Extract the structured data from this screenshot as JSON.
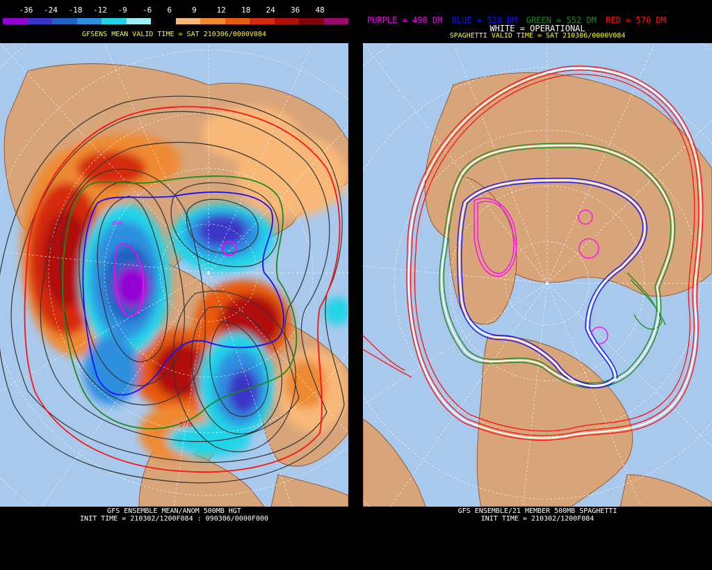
{
  "left": {
    "colorbar": {
      "labels": [
        "-36",
        "-24",
        "-18",
        "-12",
        "-9",
        "-6",
        "6",
        "9",
        "12",
        "18",
        "24",
        "36",
        "48"
      ],
      "colors": [
        "#9400d3",
        "#3a35c8",
        "#2060c0",
        "#2f8fdf",
        "#21d4e8",
        "#a0ecf5",
        "#000000",
        "#f8b878",
        "#ef8a30",
        "#e85a10",
        "#d42a10",
        "#b0100a",
        "#800010",
        "#9a0a6a"
      ]
    },
    "valid_time": "GFSENS MEAN VALID TIME = SAT 210306/0000V084",
    "caption_line1": "GFS ENSEMBLE MEAN/ANOM 500MB HGT",
    "caption_line2": "INIT TIME = 210302/1200F084 : 090306/0000F000",
    "contour_label_576": "576",
    "contour_label_498": "498"
  },
  "right": {
    "legend": {
      "purple": "PURPLE = 498 DM",
      "blue": "BLUE = 528 DM",
      "green": "GREEN = 552 DM",
      "red": "RED = 576 DM",
      "white": "WHITE = OPERATIONAL"
    },
    "legend_colors": {
      "purple": "#ff00ff",
      "blue": "#1010ff",
      "green": "#1a8a1a",
      "red": "#ff1010",
      "white": "#ffffff"
    },
    "valid_time": "SPAGHETTI VALID TIME = SAT 210306/0000V084",
    "caption_line1": "GFS ENSEMBLE/21 MEMBER 500MB SPAGHETTI",
    "caption_line2": "INIT TIME = 210302/1200F084"
  },
  "colors": {
    "ocean": "#a9c9ec",
    "land": "#d8a47a",
    "coast": "#8b4513",
    "graticule": "#ffffff"
  }
}
